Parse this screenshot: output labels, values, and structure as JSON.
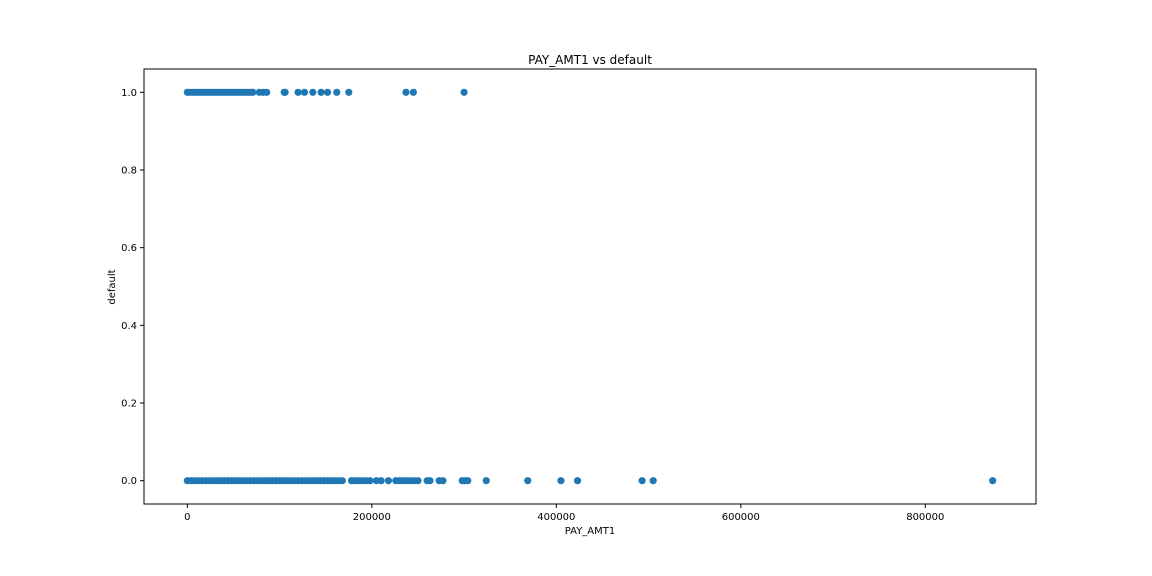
{
  "chart_data": {
    "type": "scatter",
    "title": "PAY_AMT1 vs default",
    "xlabel": "PAY_AMT1",
    "ylabel": "default",
    "xlim": [
      -47000,
      920000
    ],
    "ylim": [
      -0.06,
      1.06
    ],
    "xticks": [
      0,
      200000,
      400000,
      600000,
      800000
    ],
    "xtick_labels": [
      "0",
      "200000",
      "400000",
      "600000",
      "800000"
    ],
    "yticks": [
      0.0,
      0.2,
      0.4,
      0.6,
      0.8,
      1.0
    ],
    "ytick_labels": [
      "0.0",
      "0.2",
      "0.4",
      "0.6",
      "0.8",
      "1.0"
    ],
    "grid": false,
    "legend": "none",
    "marker_color": "#1f77b4",
    "series": [
      {
        "points": [
          {
            "x": 0,
            "y": 1
          },
          {
            "x": 3000,
            "y": 1
          },
          {
            "x": 6000,
            "y": 1
          },
          {
            "x": 9000,
            "y": 1
          },
          {
            "x": 12000,
            "y": 1
          },
          {
            "x": 15000,
            "y": 1
          },
          {
            "x": 18000,
            "y": 1
          },
          {
            "x": 21000,
            "y": 1
          },
          {
            "x": 24000,
            "y": 1
          },
          {
            "x": 27000,
            "y": 1
          },
          {
            "x": 30000,
            "y": 1
          },
          {
            "x": 33000,
            "y": 1
          },
          {
            "x": 36000,
            "y": 1
          },
          {
            "x": 39000,
            "y": 1
          },
          {
            "x": 42000,
            "y": 1
          },
          {
            "x": 45000,
            "y": 1
          },
          {
            "x": 48000,
            "y": 1
          },
          {
            "x": 51000,
            "y": 1
          },
          {
            "x": 54000,
            "y": 1
          },
          {
            "x": 57000,
            "y": 1
          },
          {
            "x": 60000,
            "y": 1
          },
          {
            "x": 63000,
            "y": 1
          },
          {
            "x": 66000,
            "y": 1
          },
          {
            "x": 69000,
            "y": 1
          },
          {
            "x": 71000,
            "y": 1
          },
          {
            "x": 78000,
            "y": 1
          },
          {
            "x": 82000,
            "y": 1
          },
          {
            "x": 86000,
            "y": 1
          },
          {
            "x": 105000,
            "y": 1
          },
          {
            "x": 106000,
            "y": 1
          },
          {
            "x": 120000,
            "y": 1
          },
          {
            "x": 127000,
            "y": 1
          },
          {
            "x": 136000,
            "y": 1
          },
          {
            "x": 145000,
            "y": 1
          },
          {
            "x": 152000,
            "y": 1
          },
          {
            "x": 162000,
            "y": 1
          },
          {
            "x": 175000,
            "y": 1
          },
          {
            "x": 237000,
            "y": 1
          },
          {
            "x": 245000,
            "y": 1
          },
          {
            "x": 300000,
            "y": 1
          },
          {
            "x": 0,
            "y": 0
          },
          {
            "x": 4000,
            "y": 0
          },
          {
            "x": 8000,
            "y": 0
          },
          {
            "x": 12000,
            "y": 0
          },
          {
            "x": 16000,
            "y": 0
          },
          {
            "x": 20000,
            "y": 0
          },
          {
            "x": 24000,
            "y": 0
          },
          {
            "x": 28000,
            "y": 0
          },
          {
            "x": 32000,
            "y": 0
          },
          {
            "x": 36000,
            "y": 0
          },
          {
            "x": 40000,
            "y": 0
          },
          {
            "x": 44000,
            "y": 0
          },
          {
            "x": 48000,
            "y": 0
          },
          {
            "x": 52000,
            "y": 0
          },
          {
            "x": 56000,
            "y": 0
          },
          {
            "x": 60000,
            "y": 0
          },
          {
            "x": 64000,
            "y": 0
          },
          {
            "x": 68000,
            "y": 0
          },
          {
            "x": 72000,
            "y": 0
          },
          {
            "x": 76000,
            "y": 0
          },
          {
            "x": 80000,
            "y": 0
          },
          {
            "x": 84000,
            "y": 0
          },
          {
            "x": 88000,
            "y": 0
          },
          {
            "x": 92000,
            "y": 0
          },
          {
            "x": 96000,
            "y": 0
          },
          {
            "x": 100000,
            "y": 0
          },
          {
            "x": 104000,
            "y": 0
          },
          {
            "x": 108000,
            "y": 0
          },
          {
            "x": 112000,
            "y": 0
          },
          {
            "x": 116000,
            "y": 0
          },
          {
            "x": 120000,
            "y": 0
          },
          {
            "x": 124000,
            "y": 0
          },
          {
            "x": 128000,
            "y": 0
          },
          {
            "x": 132000,
            "y": 0
          },
          {
            "x": 136000,
            "y": 0
          },
          {
            "x": 140000,
            "y": 0
          },
          {
            "x": 144000,
            "y": 0
          },
          {
            "x": 148000,
            "y": 0
          },
          {
            "x": 152000,
            "y": 0
          },
          {
            "x": 156000,
            "y": 0
          },
          {
            "x": 160000,
            "y": 0
          },
          {
            "x": 164000,
            "y": 0
          },
          {
            "x": 168000,
            "y": 0
          },
          {
            "x": 178000,
            "y": 0
          },
          {
            "x": 182000,
            "y": 0
          },
          {
            "x": 186000,
            "y": 0
          },
          {
            "x": 190000,
            "y": 0
          },
          {
            "x": 194000,
            "y": 0
          },
          {
            "x": 198000,
            "y": 0
          },
          {
            "x": 205000,
            "y": 0
          },
          {
            "x": 210000,
            "y": 0
          },
          {
            "x": 218000,
            "y": 0
          },
          {
            "x": 226000,
            "y": 0
          },
          {
            "x": 230000,
            "y": 0
          },
          {
            "x": 234000,
            "y": 0
          },
          {
            "x": 238000,
            "y": 0
          },
          {
            "x": 242000,
            "y": 0
          },
          {
            "x": 246000,
            "y": 0
          },
          {
            "x": 250000,
            "y": 0
          },
          {
            "x": 260000,
            "y": 0
          },
          {
            "x": 263000,
            "y": 0
          },
          {
            "x": 273000,
            "y": 0
          },
          {
            "x": 277000,
            "y": 0
          },
          {
            "x": 298000,
            "y": 0
          },
          {
            "x": 301000,
            "y": 0
          },
          {
            "x": 304000,
            "y": 0
          },
          {
            "x": 324000,
            "y": 0
          },
          {
            "x": 369000,
            "y": 0
          },
          {
            "x": 405000,
            "y": 0
          },
          {
            "x": 423000,
            "y": 0
          },
          {
            "x": 493000,
            "y": 0
          },
          {
            "x": 505000,
            "y": 0
          },
          {
            "x": 873000,
            "y": 0
          }
        ]
      }
    ]
  }
}
